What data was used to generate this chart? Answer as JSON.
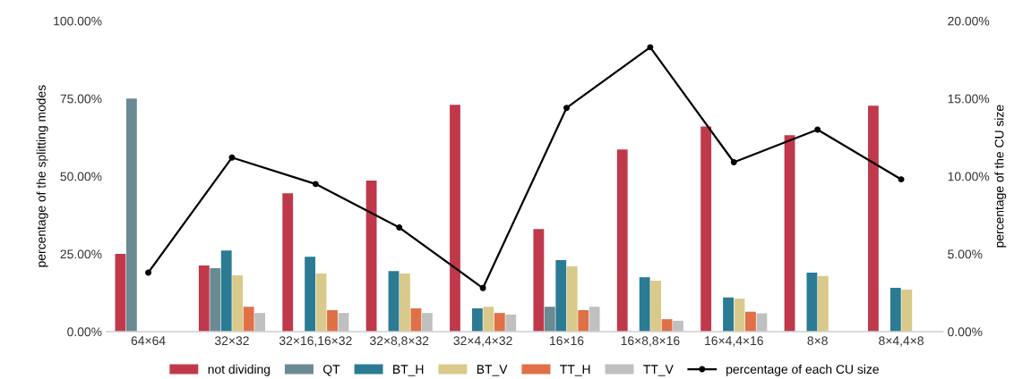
{
  "chart_data": {
    "type": "bar",
    "categories": [
      "64×64",
      "32×32",
      "32×16,16×32",
      "32×8,8×32",
      "32×4,4×32",
      "16×16",
      "16×8,8×16",
      "16×4,4×16",
      "8×8",
      "8×4,4×8"
    ],
    "ylabel": "percentage of the splitting modes",
    "y2label": "percentage of the CU size",
    "ylim": [
      0,
      100
    ],
    "yticks": [
      {
        "value": 0,
        "label": "0.00%"
      },
      {
        "value": 25,
        "label": "25.00%"
      },
      {
        "value": 50,
        "label": "50.00%"
      },
      {
        "value": 75,
        "label": "75.00%"
      },
      {
        "value": 100,
        "label": "100.00%"
      }
    ],
    "y2lim": [
      0,
      20
    ],
    "y2ticks": [
      {
        "value": 0,
        "label": "0.00%"
      },
      {
        "value": 5,
        "label": "5.00%"
      },
      {
        "value": 10,
        "label": "10.00%"
      },
      {
        "value": 15,
        "label": "15.00%"
      },
      {
        "value": 20,
        "label": "20.00%"
      }
    ],
    "grid": false,
    "legend": "bottom",
    "series": [
      {
        "name": "not dividing",
        "color": "#c0394b",
        "values": [
          25,
          21.3,
          44.5,
          48.6,
          73,
          33,
          58.6,
          66,
          63.2,
          72.7
        ]
      },
      {
        "name": "QT",
        "color": "#6a8a94",
        "values": [
          75,
          20.4,
          null,
          null,
          null,
          8,
          null,
          null,
          null,
          null
        ]
      },
      {
        "name": "BT_H",
        "color": "#2a7b93",
        "values": [
          null,
          26.1,
          24.1,
          19.5,
          7.5,
          23,
          17.5,
          11,
          19,
          14.1
        ]
      },
      {
        "name": "BT_V",
        "color": "#d9c98a",
        "values": [
          null,
          18.1,
          18.7,
          18.7,
          8,
          21,
          16.4,
          10.6,
          17.9,
          13.5
        ]
      },
      {
        "name": "TT_H",
        "color": "#e07045",
        "values": [
          null,
          8,
          6.9,
          7.5,
          6,
          6.9,
          4,
          6.4,
          null,
          null
        ]
      },
      {
        "name": "TT_V",
        "color": "#c0c0c0",
        "values": [
          null,
          6,
          6,
          6,
          5.5,
          8,
          3.5,
          5.9,
          null,
          null
        ]
      },
      {
        "name": "percentage of each CU size",
        "color": "#000000",
        "type": "line",
        "axis": "y2",
        "marker": "circle",
        "values": [
          3.8,
          11.2,
          9.5,
          6.7,
          2.8,
          14.4,
          18.3,
          10.9,
          13,
          9.8
        ]
      }
    ]
  }
}
